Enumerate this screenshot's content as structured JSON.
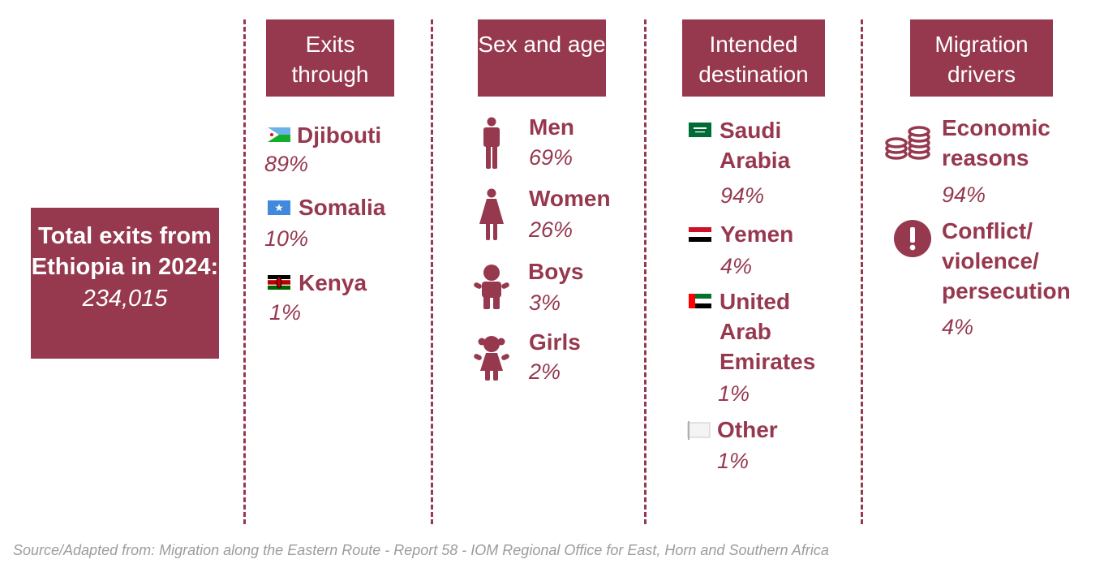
{
  "total": {
    "label": "Total exits from Ethiopia in 2024:",
    "value": "234,015"
  },
  "columns": {
    "exits": {
      "header": "Exits through",
      "items": [
        {
          "label": "Djibouti",
          "value": "89%"
        },
        {
          "label": "Somalia",
          "value": "10%"
        },
        {
          "label": "Kenya",
          "value": "1%"
        }
      ]
    },
    "sex_age": {
      "header": "Sex and age",
      "items": [
        {
          "label": "Men",
          "value": "69%"
        },
        {
          "label": "Women",
          "value": "26%"
        },
        {
          "label": "Boys",
          "value": "3%"
        },
        {
          "label": "Girls",
          "value": "2%"
        }
      ]
    },
    "destination": {
      "header": "Intended destination",
      "items": [
        {
          "label": "Saudi Arabia",
          "value": "94%"
        },
        {
          "label": "Yemen",
          "value": "4%"
        },
        {
          "label": "United Arab Emirates",
          "value": "1%"
        },
        {
          "label": "Other",
          "value": "1%"
        }
      ]
    },
    "drivers": {
      "header": "Migration drivers",
      "items": [
        {
          "label": "Economic reasons",
          "value": "94%"
        },
        {
          "label": "Conflict/ violence/ persecution",
          "value": "4%"
        }
      ]
    }
  },
  "source": "Source/Adapted from: Migration along the Eastern Route - Report 58 - IOM Regional Office for East, Horn and Southern Africa",
  "colors": {
    "accent": "#96384e",
    "source_text": "#9c9c9c",
    "background": "#ffffff"
  },
  "icons": [
    "djibouti-flag-icon",
    "somalia-flag-icon",
    "kenya-flag-icon",
    "man-icon",
    "woman-icon",
    "boy-icon",
    "girl-icon",
    "saudi-flag-icon",
    "yemen-flag-icon",
    "uae-flag-icon",
    "white-flag-icon",
    "coins-icon",
    "exclamation-icon"
  ]
}
